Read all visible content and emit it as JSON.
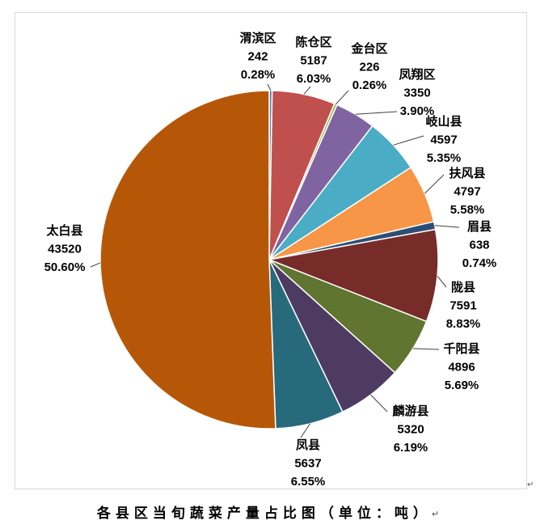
{
  "chart_data": {
    "type": "pie",
    "title": "各县区当旬蔬菜产量占比图（单位：吨）",
    "slices": [
      {
        "name": "渭滨区",
        "value": 242,
        "percent": "0.28%",
        "color": "#4F81BD"
      },
      {
        "name": "陈仓区",
        "value": 5187,
        "percent": "6.03%",
        "color": "#C0504D"
      },
      {
        "name": "金台区",
        "value": 226,
        "percent": "0.26%",
        "color": "#9BBB59"
      },
      {
        "name": "凤翔区",
        "value": 3350,
        "percent": "3.90%",
        "color": "#8064A2"
      },
      {
        "name": "岐山县",
        "value": 4597,
        "percent": "5.35%",
        "color": "#4BACC6"
      },
      {
        "name": "扶风县",
        "value": 4797,
        "percent": "5.58%",
        "color": "#F79646"
      },
      {
        "name": "眉县",
        "value": 638,
        "percent": "0.74%",
        "color": "#2C4D75"
      },
      {
        "name": "陇县",
        "value": 7591,
        "percent": "8.83%",
        "color": "#772C2A"
      },
      {
        "name": "千阳县",
        "value": 4896,
        "percent": "5.69%",
        "color": "#5F7530"
      },
      {
        "name": "麟游县",
        "value": 5320,
        "percent": "6.19%",
        "color": "#4D3B62"
      },
      {
        "name": "凤县",
        "value": 5637,
        "percent": "6.55%",
        "color": "#276A7C"
      },
      {
        "name": "太白县",
        "value": 43520,
        "percent": "50.60%",
        "color": "#B65708"
      }
    ]
  },
  "caption_mark": "↵",
  "frame_mark": "↵"
}
